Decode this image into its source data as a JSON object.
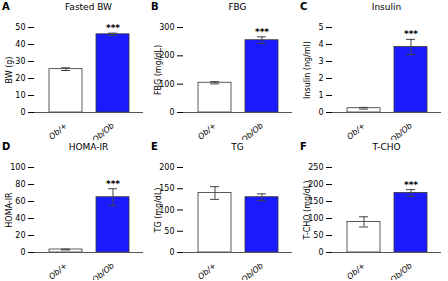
{
  "chart_data": [
    {
      "type": "bar",
      "panel_label": "A",
      "title": "Fasted BW",
      "ylabel": "BW (g)",
      "categories": [
        "Ob/+",
        "Ob/Ob"
      ],
      "values": [
        25.5,
        46.0
      ],
      "errors": [
        0.8,
        0.7
      ],
      "colors": [
        "#ffffff",
        "#1a1aff"
      ],
      "edge_color": "#333333",
      "ylim": [
        0,
        50
      ],
      "yticks": [
        0,
        10,
        20,
        30,
        40,
        50
      ],
      "annotations": [
        {
          "text": "***",
          "x": "Ob/Ob"
        }
      ]
    },
    {
      "type": "bar",
      "panel_label": "B",
      "title": "FBG",
      "ylabel": "FBG (mg/dL)",
      "categories": [
        "Ob/+",
        "Ob/Ob"
      ],
      "values": [
        105.0,
        255.0
      ],
      "errors": [
        4.0,
        12.0
      ],
      "colors": [
        "#ffffff",
        "#1a1aff"
      ],
      "edge_color": "#333333",
      "ylim": [
        0,
        300
      ],
      "yticks": [
        0,
        100,
        200,
        300
      ],
      "annotations": [
        {
          "text": "***",
          "x": "Ob/Ob"
        }
      ]
    },
    {
      "type": "bar",
      "panel_label": "C",
      "title": "Insulin",
      "ylabel": "Insulin (ng/ml)",
      "categories": [
        "Ob/+",
        "Ob/Ob"
      ],
      "values": [
        0.25,
        3.85
      ],
      "errors": [
        0.05,
        0.45
      ],
      "colors": [
        "#ffffff",
        "#1a1aff"
      ],
      "edge_color": "#333333",
      "ylim": [
        0,
        5
      ],
      "yticks": [
        0,
        1,
        2,
        3,
        4,
        5
      ],
      "annotations": [
        {
          "text": "***",
          "x": "Ob/Ob"
        }
      ]
    },
    {
      "type": "bar",
      "panel_label": "D",
      "title": "HOMA-IR",
      "ylabel": "HOMA-IR",
      "categories": [
        "Ob/+",
        "Ob/Ob"
      ],
      "values": [
        3.5,
        65.0
      ],
      "errors": [
        0.5,
        10.0
      ],
      "colors": [
        "#ffffff",
        "#1a1aff"
      ],
      "edge_color": "#333333",
      "ylim": [
        0,
        100
      ],
      "yticks": [
        0,
        20,
        40,
        60,
        80,
        100
      ],
      "annotations": [
        {
          "text": "***",
          "x": "Ob/Ob"
        }
      ]
    },
    {
      "type": "bar",
      "panel_label": "E",
      "title": "TG",
      "ylabel": "TG (mg/dL)",
      "categories": [
        "Ob/+",
        "Ob/Ob"
      ],
      "values": [
        140.0,
        130.0
      ],
      "errors": [
        15.0,
        8.0
      ],
      "colors": [
        "#ffffff",
        "#1a1aff"
      ],
      "edge_color": "#333333",
      "ylim": [
        0,
        200
      ],
      "yticks": [
        0,
        50,
        100,
        150,
        200
      ]
    },
    {
      "type": "bar",
      "panel_label": "F",
      "title": "T-CHO",
      "ylabel": "T-CHO (mg/dL)",
      "categories": [
        "Ob/+",
        "Ob/Ob"
      ],
      "values": [
        90.0,
        175.0
      ],
      "errors": [
        15.0,
        10.0
      ],
      "colors": [
        "#ffffff",
        "#1a1aff"
      ],
      "edge_color": "#333333",
      "ylim": [
        0,
        250
      ],
      "yticks": [
        0,
        50,
        100,
        150,
        200,
        250
      ],
      "annotations": [
        {
          "text": "***",
          "x": "Ob/Ob"
        }
      ]
    }
  ]
}
